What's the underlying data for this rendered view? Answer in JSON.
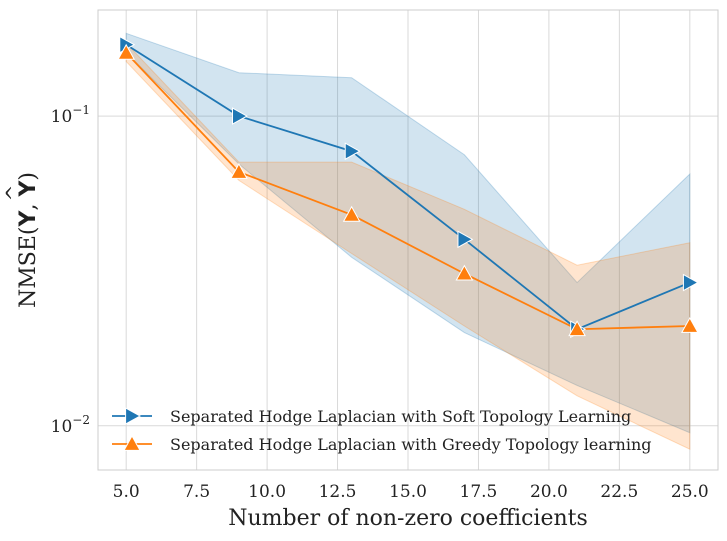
{
  "chart_data": {
    "type": "line",
    "title": "",
    "xlabel": "Number of non-zero coefficients",
    "ylabel": "NMSE(Y, Ŷ)",
    "ylabel_base": "NMSE(",
    "ylabel_y1": "Y",
    "ylabel_sep": ", ",
    "ylabel_y2": "Y",
    "ylabel_close": ")",
    "yscale": "log",
    "xlim": [
      4.0,
      26.0
    ],
    "ylim": [
      0.0072,
      0.22
    ],
    "xticks": [
      5.0,
      7.5,
      10.0,
      12.5,
      15.0,
      17.5,
      20.0,
      22.5,
      25.0
    ],
    "xtick_labels": [
      "5.0",
      "7.5",
      "10.0",
      "12.5",
      "15.0",
      "17.5",
      "20.0",
      "22.5",
      "25.0"
    ],
    "yticks": [
      {
        "value": 0.1,
        "base": "10",
        "exp": "−1"
      },
      {
        "value": 0.01,
        "base": "10",
        "exp": "−2"
      }
    ],
    "grid": true,
    "legend_position": "lower-left",
    "x": [
      5,
      9,
      13,
      17,
      21,
      25
    ],
    "series": [
      {
        "name": "Separated Hodge Laplacian with Soft Topology Learning",
        "color": "#1f77b4",
        "marker": "triangle-right",
        "values": [
          0.17,
          0.1,
          0.077,
          0.04,
          0.0205,
          0.029
        ],
        "band_upper": [
          0.185,
          0.138,
          0.133,
          0.075,
          0.029,
          0.065
        ],
        "band_lower": [
          0.16,
          0.07,
          0.035,
          0.02,
          0.0135,
          0.0095
        ]
      },
      {
        "name": "Separated Hodge Laplacian with Greedy Topology learning",
        "color": "#ff7f0e",
        "marker": "triangle-up",
        "values": [
          0.16,
          0.066,
          0.048,
          0.031,
          0.0205,
          0.021
        ],
        "band_upper": [
          0.172,
          0.071,
          0.071,
          0.05,
          0.033,
          0.039
        ],
        "band_lower": [
          0.15,
          0.062,
          0.036,
          0.021,
          0.0125,
          0.0084
        ]
      }
    ]
  }
}
